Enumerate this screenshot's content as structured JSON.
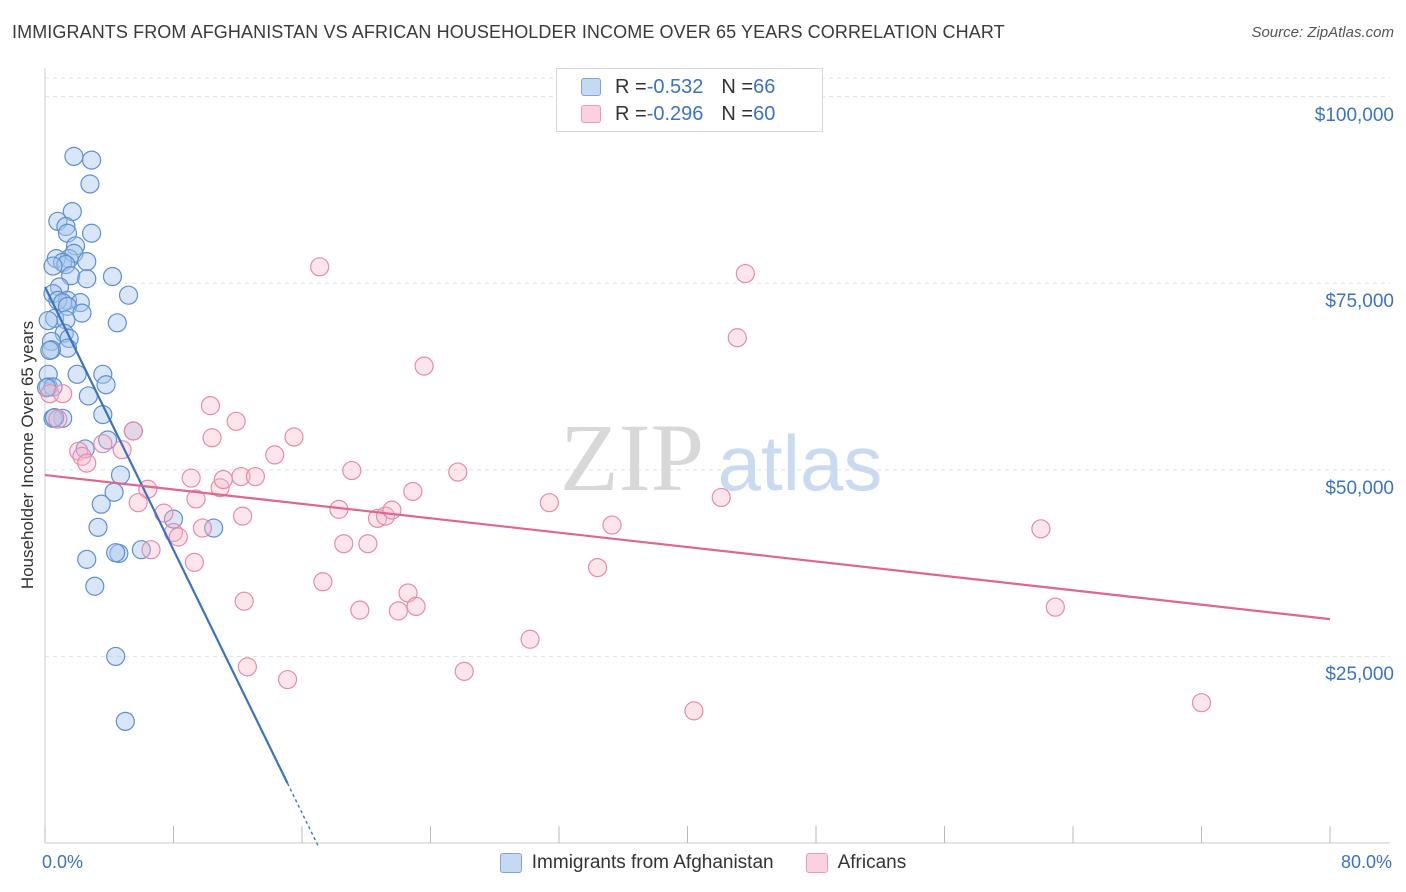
{
  "title": "IMMIGRANTS FROM AFGHANISTAN VS AFRICAN HOUSEHOLDER INCOME OVER 65 YEARS CORRELATION CHART",
  "source": "Source: ZipAtlas.com",
  "watermark": {
    "zip": "ZIP",
    "atlas": "atlas"
  },
  "colors": {
    "blue": "#3b73c4",
    "blue_fill": "#a9c8ee",
    "pink": "#e0658f",
    "pink_fill": "#f5b6c9",
    "grid": "#e0e0e0"
  },
  "legend": {
    "rows": [
      {
        "r_label": "R = ",
        "r_value": "-0.532",
        "n_label": "N = ",
        "n_value": "66"
      },
      {
        "r_label": "R = ",
        "r_value": "-0.296",
        "n_label": "N = ",
        "n_value": "60"
      }
    ]
  },
  "bottom_legend": {
    "series1": "Immigrants from Afghanistan",
    "series2": "Africans"
  },
  "chart_data": {
    "type": "scatter",
    "title": "IMMIGRANTS FROM AFGHANISTAN VS AFRICAN HOUSEHOLDER INCOME OVER 65 YEARS CORRELATION CHART",
    "xlabel": "",
    "ylabel": "Householder Income Over 65 years",
    "xlim": [
      0,
      80
    ],
    "ylim": [
      0,
      102500
    ],
    "x_tick_labels": [
      "0.0%",
      "80.0%"
    ],
    "y_ticks": [
      25000,
      50000,
      75000,
      100000
    ],
    "y_tick_labels": [
      "$25,000",
      "$50,000",
      "$75,000",
      "$100,000"
    ],
    "series": [
      {
        "name": "Immigrants from Afghanistan",
        "color": "#3b73c4",
        "R": -0.532,
        "N": 66,
        "trend": {
          "x0": 0.0,
          "y0": 74500,
          "x1": 15.1,
          "y1": 8000,
          "dash_to_x": 17.0
        },
        "points": [
          [
            1.8,
            92000
          ],
          [
            2.9,
            91500
          ],
          [
            2.8,
            88300
          ],
          [
            1.7,
            84600
          ],
          [
            0.8,
            83300
          ],
          [
            1.3,
            82600
          ],
          [
            2.9,
            81700
          ],
          [
            1.4,
            81700
          ],
          [
            1.9,
            80000
          ],
          [
            1.5,
            78300
          ],
          [
            0.7,
            78300
          ],
          [
            1.8,
            79000
          ],
          [
            1.1,
            77800
          ],
          [
            2.6,
            77900
          ],
          [
            1.3,
            77500
          ],
          [
            0.5,
            77300
          ],
          [
            1.6,
            76000
          ],
          [
            2.6,
            75600
          ],
          [
            4.2,
            75900
          ],
          [
            0.9,
            74500
          ],
          [
            0.5,
            73600
          ],
          [
            1.4,
            72700
          ],
          [
            0.8,
            72700
          ],
          [
            1.1,
            72400
          ],
          [
            2.2,
            72400
          ],
          [
            1.4,
            71900
          ],
          [
            2.3,
            71000
          ],
          [
            0.6,
            70300
          ],
          [
            1.3,
            70100
          ],
          [
            0.2,
            70000
          ],
          [
            4.5,
            69700
          ],
          [
            1.2,
            68300
          ],
          [
            1.5,
            67600
          ],
          [
            0.4,
            67200
          ],
          [
            1.4,
            66300
          ],
          [
            0.4,
            66100
          ],
          [
            0.2,
            62800
          ],
          [
            2.0,
            62800
          ],
          [
            3.6,
            62800
          ],
          [
            5.2,
            73400
          ],
          [
            3.8,
            61400
          ],
          [
            0.2,
            61100
          ],
          [
            0.5,
            61100
          ],
          [
            2.7,
            59900
          ],
          [
            3.6,
            57400
          ],
          [
            1.1,
            56900
          ],
          [
            0.5,
            56900
          ],
          [
            5.5,
            55200
          ],
          [
            3.9,
            54000
          ],
          [
            2.5,
            52800
          ],
          [
            4.7,
            49300
          ],
          [
            4.3,
            47000
          ],
          [
            3.5,
            45400
          ],
          [
            8.0,
            43400
          ],
          [
            3.3,
            42300
          ],
          [
            10.5,
            42200
          ],
          [
            6.0,
            39300
          ],
          [
            4.6,
            38800
          ],
          [
            4.4,
            38900
          ],
          [
            2.6,
            38000
          ],
          [
            3.1,
            34400
          ],
          [
            4.4,
            25000
          ],
          [
            5.0,
            16300
          ],
          [
            0.1,
            61000
          ],
          [
            0.3,
            66000
          ],
          [
            0.6,
            57000
          ]
        ]
      },
      {
        "name": "Africans",
        "color": "#e0658f",
        "R": -0.296,
        "N": 60,
        "trend": {
          "x0": 0.0,
          "y0": 49300,
          "x1": 80.0,
          "y1": 30000
        },
        "points": [
          [
            0.3,
            60200
          ],
          [
            0.8,
            56800
          ],
          [
            2.1,
            52500
          ],
          [
            2.3,
            51800
          ],
          [
            2.6,
            50900
          ],
          [
            4.8,
            52700
          ],
          [
            5.5,
            55200
          ],
          [
            6.4,
            47400
          ],
          [
            5.8,
            45600
          ],
          [
            6.6,
            39300
          ],
          [
            7.4,
            44200
          ],
          [
            8.0,
            41600
          ],
          [
            8.3,
            41000
          ],
          [
            9.1,
            48900
          ],
          [
            9.4,
            46100
          ],
          [
            9.3,
            37600
          ],
          [
            9.8,
            42200
          ],
          [
            10.4,
            54300
          ],
          [
            10.9,
            47600
          ],
          [
            11.1,
            48700
          ],
          [
            12.2,
            49100
          ],
          [
            12.3,
            43800
          ],
          [
            12.4,
            32400
          ],
          [
            13.1,
            49100
          ],
          [
            14.3,
            52000
          ],
          [
            15.5,
            54400
          ],
          [
            15.1,
            21900
          ],
          [
            17.3,
            35000
          ],
          [
            18.3,
            44700
          ],
          [
            18.6,
            40100
          ],
          [
            19.1,
            49900
          ],
          [
            19.6,
            31200
          ],
          [
            20.1,
            40100
          ],
          [
            20.7,
            43500
          ],
          [
            21.2,
            43800
          ],
          [
            21.6,
            44600
          ],
          [
            22.0,
            31100
          ],
          [
            22.6,
            33500
          ],
          [
            22.9,
            47100
          ],
          [
            23.1,
            31700
          ],
          [
            23.6,
            63900
          ],
          [
            25.7,
            49700
          ],
          [
            26.1,
            23000
          ],
          [
            30.2,
            27300
          ],
          [
            31.4,
            45600
          ],
          [
            34.4,
            36900
          ],
          [
            35.3,
            42600
          ],
          [
            40.4,
            17700
          ],
          [
            42.1,
            46300
          ],
          [
            43.1,
            67700
          ],
          [
            43.6,
            76300
          ],
          [
            62.0,
            42100
          ],
          [
            62.9,
            31600
          ],
          [
            72.0,
            18800
          ],
          [
            10.3,
            58600
          ],
          [
            11.9,
            56500
          ],
          [
            17.1,
            77200
          ],
          [
            12.6,
            23600
          ],
          [
            1.1,
            60200
          ],
          [
            3.6,
            53500
          ]
        ]
      }
    ]
  }
}
